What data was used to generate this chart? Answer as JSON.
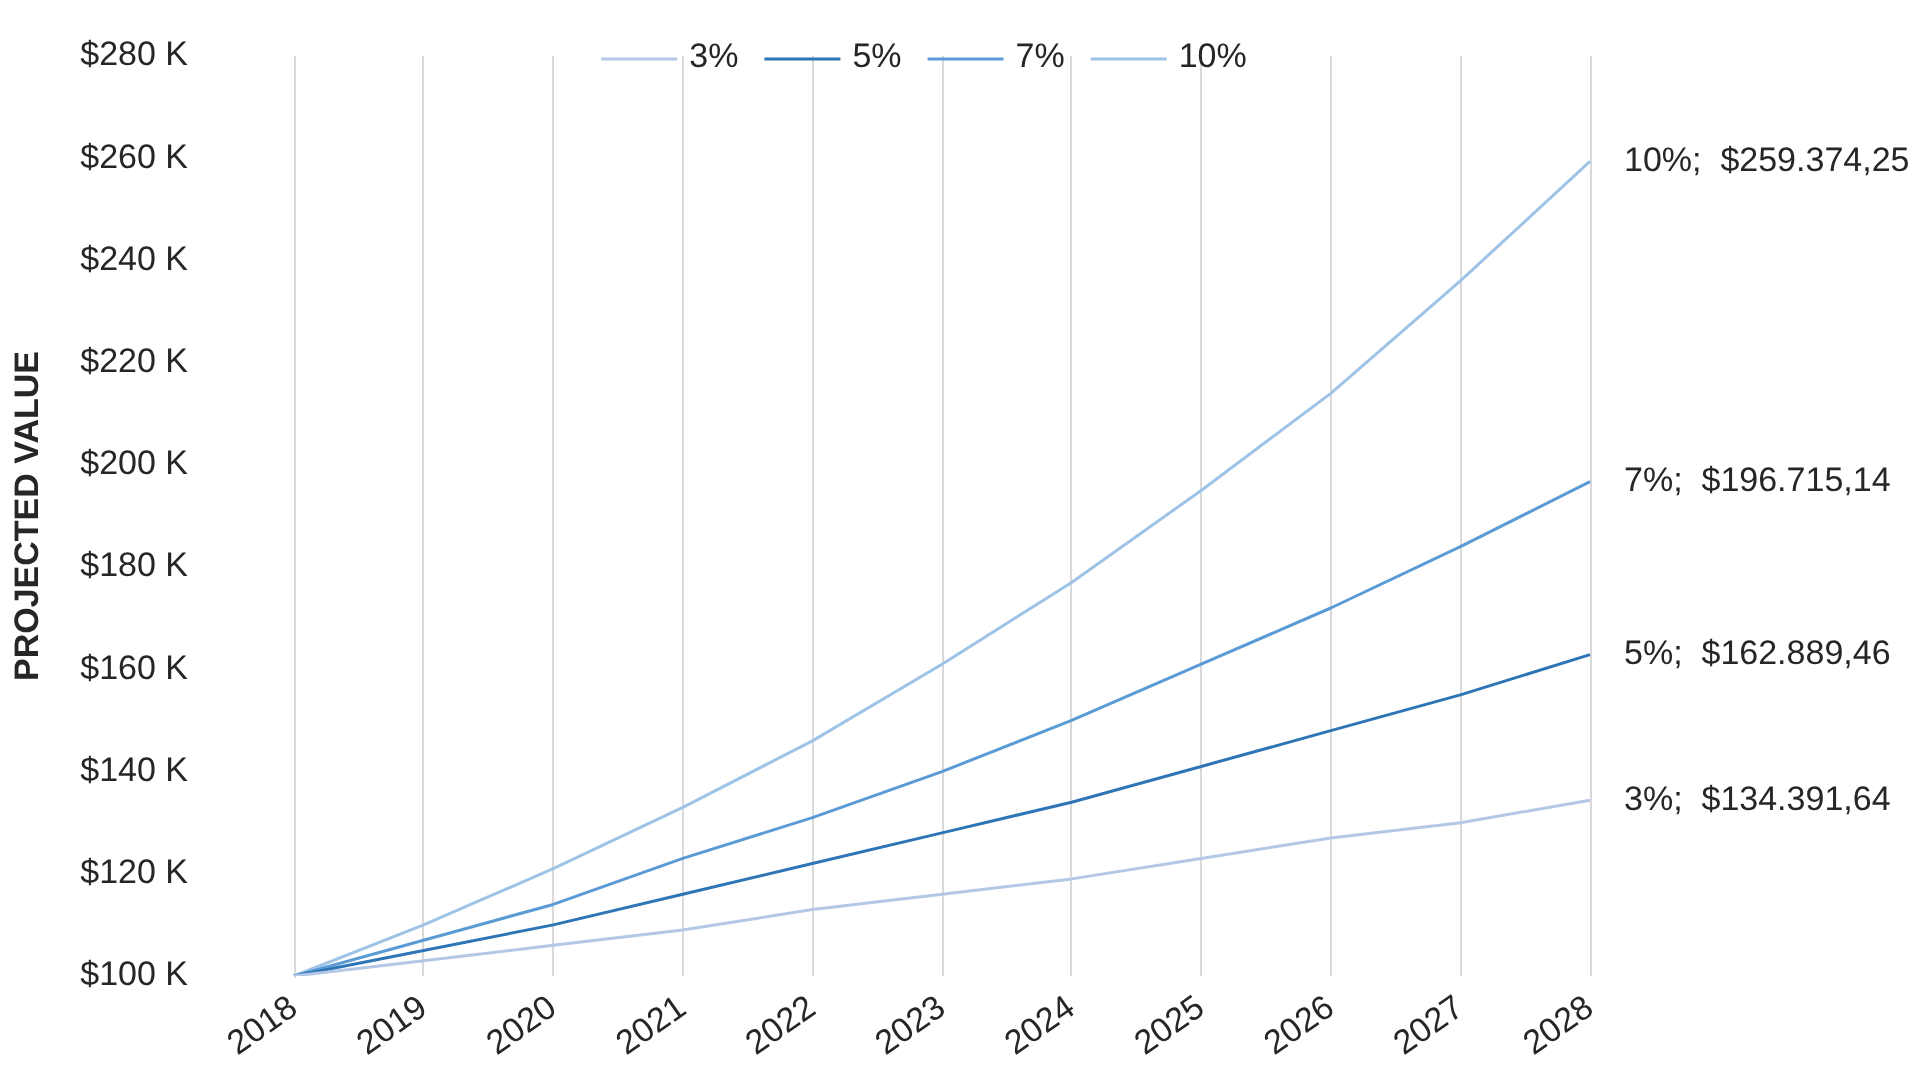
{
  "chart_data": {
    "type": "line",
    "categories": [
      "2018",
      "2019",
      "2020",
      "2021",
      "2022",
      "2023",
      "2024",
      "2025",
      "2026",
      "2027",
      "2028"
    ],
    "ylabel": "PROJECTED VALUE",
    "ylim": [
      100000,
      280000
    ],
    "yticks": [
      {
        "value": 100000,
        "label": "$100 K"
      },
      {
        "value": 120000,
        "label": "$120 K"
      },
      {
        "value": 140000,
        "label": "$140 K"
      },
      {
        "value": 160000,
        "label": "$160 K"
      },
      {
        "value": 180000,
        "label": "$180 K"
      },
      {
        "value": 200000,
        "label": "$200 K"
      },
      {
        "value": 220000,
        "label": "$220 K"
      },
      {
        "value": 240000,
        "label": "$240 K"
      },
      {
        "value": 260000,
        "label": "$260 K"
      },
      {
        "value": 280000,
        "label": "$280 K"
      }
    ],
    "series": [
      {
        "name": "3%",
        "color": "#b4c7e7",
        "values": [
          100000,
          103000,
          106000,
          109000,
          113000,
          116000,
          119000,
          123000,
          127000,
          130000,
          134391.64
        ],
        "value_labels": [
          null,
          null,
          null,
          null,
          null,
          null,
          null,
          null,
          null,
          null,
          "3%;  $134.391,64"
        ]
      },
      {
        "name": "5%",
        "color": "#2e75b6",
        "values": [
          100000,
          105000,
          110000,
          116000,
          122000,
          128000,
          134000,
          141000,
          148000,
          155000,
          162889.46
        ],
        "value_labels": [
          null,
          null,
          null,
          null,
          null,
          null,
          null,
          null,
          null,
          null,
          "5%;  $162.889,46"
        ]
      },
      {
        "name": "7%",
        "color": "#5b9bd5",
        "values": [
          100000,
          107000,
          114000,
          123000,
          131000,
          140000,
          150000,
          161000,
          172000,
          184000,
          196715.14
        ],
        "value_labels": [
          null,
          null,
          null,
          null,
          null,
          null,
          null,
          null,
          null,
          null,
          "7%;  $196.715,14"
        ]
      },
      {
        "name": "10%",
        "color": "#9dc3e6",
        "values": [
          100000,
          110000,
          121000,
          133000,
          146000,
          161000,
          177000,
          195000,
          214000,
          236000,
          259374.25
        ],
        "value_labels": [
          null,
          null,
          null,
          null,
          null,
          null,
          null,
          null,
          null,
          null,
          "10%;  $259.374,25"
        ]
      }
    ],
    "legend": "top",
    "grid": "x",
    "marker": "none",
    "line_style": "solid"
  }
}
